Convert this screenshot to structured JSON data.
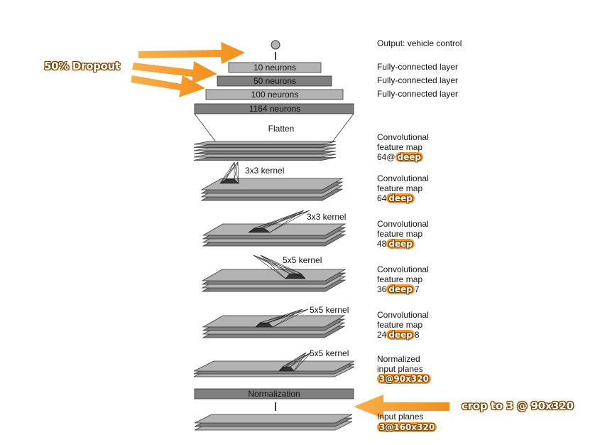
{
  "layers": {
    "output": "Output: vehicle control",
    "fc": [
      "10 neurons",
      "50 neurons",
      "100 neurons",
      "1164 neurons"
    ],
    "fc_label": "Fully-connected layer",
    "flatten": "Flatten",
    "normalization": "Normalization"
  },
  "kernels": [
    "3x3 kernel",
    "3x3 kernel",
    "5x5 kernel",
    "5x5 kernel",
    "5x5 kernel"
  ],
  "right_labels": {
    "conv": [
      "Convolutional",
      "feature map"
    ],
    "conv_prefixes": [
      "64@",
      "64",
      "48",
      "36",
      "24"
    ],
    "conv_suffixes": [
      "",
      "",
      "",
      "7",
      "8"
    ],
    "deep_badge": "deep",
    "normalized": [
      "Normalized",
      "input planes"
    ],
    "normalized_badge": "3@90x320",
    "input": "Input planes",
    "input_badge": "3@160x320"
  },
  "callouts": {
    "dropout": "50% Dropout",
    "crop": "crop to 3 @ 90x320"
  },
  "colors": {
    "light_gray": "#b3b3b3",
    "dark_gray": "#7f7f7f",
    "accent_orange": "#f39a2a"
  }
}
